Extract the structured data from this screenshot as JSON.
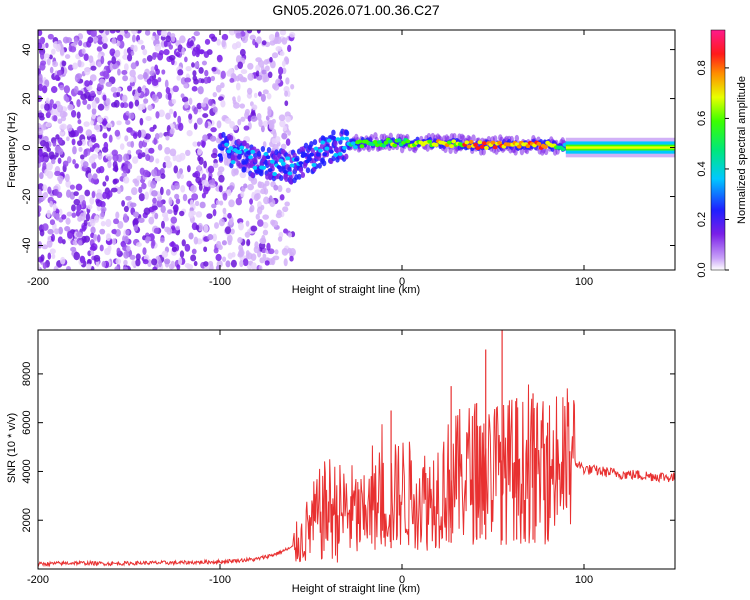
{
  "title": "GN05.2026.071.00.36.C27",
  "colors": {
    "snr_line": "#e83030",
    "spectrogram_scatter": "#7a1fe8",
    "axis": "#000000"
  },
  "chart_data": [
    {
      "type": "heatmap",
      "name": "spectrogram",
      "xlabel": "Height of straight line (km)",
      "ylabel": "Frequency (Hz)",
      "xlim": [
        -200,
        150
      ],
      "ylim": [
        -50,
        48
      ],
      "xticks": [
        -200,
        -100,
        0,
        100
      ],
      "yticks": [
        -40,
        -20,
        0,
        20,
        40
      ],
      "colorbar": {
        "label": "Normalized spectral amplitude",
        "range": [
          0,
          0.95
        ],
        "ticks": [
          0.0,
          0.2,
          0.4,
          0.6,
          0.8
        ],
        "colormap": "rainbow (purple-blue-cyan-green-yellow-red-magenta)"
      },
      "features": [
        {
          "label": "diffuse noise",
          "x_range": [
            -200,
            -60
          ],
          "freq_range": [
            -50,
            48
          ],
          "amplitude": 0.1
        },
        {
          "label": "carrier track",
          "x": [
            -100,
            -80,
            -60,
            -40,
            -20,
            0,
            20,
            40,
            60,
            80,
            90,
            100,
            150
          ],
          "freq": [
            0,
            -6,
            -8,
            0,
            2,
            2,
            2,
            1,
            1,
            1,
            0,
            0,
            0
          ],
          "amplitude": [
            0.3,
            0.35,
            0.3,
            0.45,
            0.65,
            0.7,
            0.8,
            0.85,
            0.85,
            0.9,
            0.5,
            0.65,
            0.65
          ]
        }
      ]
    },
    {
      "type": "line",
      "name": "snr",
      "xlabel": "Height of straight line (km)",
      "ylabel": "SNR (10 * v/v)",
      "xlim": [
        -200,
        150
      ],
      "ylim": [
        0,
        9800
      ],
      "xticks": [
        -200,
        -100,
        0,
        100
      ],
      "yticks": [
        2000,
        4000,
        6000,
        8000
      ],
      "grid": false,
      "x": [
        -200,
        -180,
        -160,
        -140,
        -120,
        -100,
        -90,
        -80,
        -70,
        -60,
        -55,
        -50,
        -45,
        -40,
        -35,
        -30,
        -25,
        -20,
        -15,
        -10,
        -5,
        0,
        5,
        10,
        15,
        20,
        25,
        30,
        35,
        40,
        45,
        50,
        55,
        60,
        65,
        70,
        75,
        80,
        85,
        90,
        95,
        100,
        110,
        120,
        130,
        140,
        150
      ],
      "y": [
        200,
        250,
        220,
        250,
        260,
        300,
        350,
        400,
        600,
        900,
        1200,
        1800,
        2200,
        2500,
        2300,
        2400,
        2200,
        2000,
        2500,
        2700,
        2900,
        3200,
        3000,
        3000,
        2800,
        3300,
        3500,
        3700,
        3900,
        4000,
        4000,
        4200,
        3900,
        4100,
        4000,
        4100,
        3900,
        4000,
        4200,
        4300,
        4400,
        4100,
        4000,
        3900,
        3850,
        3800,
        3750
      ],
      "spikes": [
        {
          "x": -6,
          "y": 6500
        },
        {
          "x": 27,
          "y": 7500
        },
        {
          "x": 41,
          "y": 6800
        },
        {
          "x": 46,
          "y": 9000
        },
        {
          "x": 55,
          "y": 9800
        },
        {
          "x": 63,
          "y": 7000
        },
        {
          "x": 72,
          "y": 7200
        },
        {
          "x": 80,
          "y": 6000
        }
      ]
    }
  ]
}
